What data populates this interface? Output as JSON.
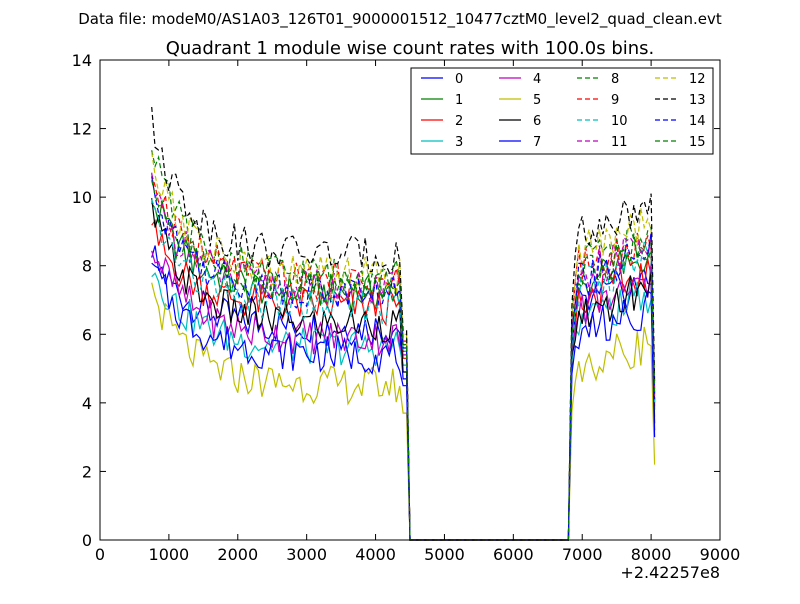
{
  "suptitle": "Data file: modeM0/AS1A03_126T01_9000001512_10477cztM0_level2_quad_clean.evt",
  "chart_data": {
    "type": "line",
    "title": "Quadrant 1 module wise count rates with 100.0s bins.",
    "xlabel": "",
    "ylabel": "",
    "x_offset_label": "+2.42257e8",
    "xlim": [
      0,
      9000
    ],
    "ylim": [
      0,
      14
    ],
    "xticks": [
      "0",
      "1000",
      "2000",
      "3000",
      "4000",
      "5000",
      "6000",
      "7000",
      "8000",
      "9000"
    ],
    "yticks": [
      "0",
      "2",
      "4",
      "6",
      "8",
      "10",
      "12",
      "14"
    ],
    "grid": false,
    "legend_position": "top-right",
    "series": [
      {
        "name": "0",
        "color": "#0000ff",
        "dash": "solid",
        "base": 6.2,
        "start": 8.3,
        "r2": 6.8,
        "end": 3.2
      },
      {
        "name": "1",
        "color": "#008000",
        "dash": "solid",
        "base": 7.2,
        "start": 10.0,
        "r2": 7.5,
        "end": 4.0
      },
      {
        "name": "2",
        "color": "#ff0000",
        "dash": "solid",
        "base": 6.8,
        "start": 9.0,
        "r2": 7.0,
        "end": 3.8
      },
      {
        "name": "3",
        "color": "#00bfbf",
        "dash": "solid",
        "base": 5.6,
        "start": 8.0,
        "r2": 6.4,
        "end": 3.6
      },
      {
        "name": "4",
        "color": "#bf00bf",
        "dash": "solid",
        "base": 5.9,
        "start": 8.6,
        "r2": 6.7,
        "end": 3.9
      },
      {
        "name": "5",
        "color": "#bfbf00",
        "dash": "solid",
        "base": 4.5,
        "start": 7.3,
        "r2": 5.0,
        "end": 2.2
      },
      {
        "name": "6",
        "color": "#000000",
        "dash": "solid",
        "base": 6.3,
        "start": 9.6,
        "r2": 6.6,
        "end": 3.4
      },
      {
        "name": "7",
        "color": "#0000ff",
        "dash": "solid",
        "base": 5.4,
        "start": 8.0,
        "r2": 6.0,
        "end": 3.0
      },
      {
        "name": "8",
        "color": "#008000",
        "dash": "dashed",
        "base": 7.7,
        "start": 11.2,
        "r2": 8.0,
        "end": 4.4
      },
      {
        "name": "9",
        "color": "#ff0000",
        "dash": "dashed",
        "base": 7.5,
        "start": 10.8,
        "r2": 7.9,
        "end": 4.3
      },
      {
        "name": "10",
        "color": "#00bfbf",
        "dash": "dashed",
        "base": 6.8,
        "start": 9.6,
        "r2": 7.4,
        "end": 4.0
      },
      {
        "name": "11",
        "color": "#bf00bf",
        "dash": "dashed",
        "base": 7.3,
        "start": 10.3,
        "r2": 7.8,
        "end": 4.2
      },
      {
        "name": "12",
        "color": "#bfbf00",
        "dash": "dashed",
        "base": 7.7,
        "start": 11.2,
        "r2": 8.4,
        "end": 4.5
      },
      {
        "name": "13",
        "color": "#000000",
        "dash": "dashed",
        "base": 8.3,
        "start": 12.1,
        "r2": 9.0,
        "end": 4.6
      },
      {
        "name": "14",
        "color": "#0000ff",
        "dash": "dashed",
        "base": 7.2,
        "start": 10.4,
        "r2": 7.6,
        "end": 4.1
      },
      {
        "name": "15",
        "color": "#008000",
        "dash": "dashed",
        "base": 7.4,
        "start": 10.0,
        "r2": 7.8,
        "end": 4.2
      }
    ]
  }
}
